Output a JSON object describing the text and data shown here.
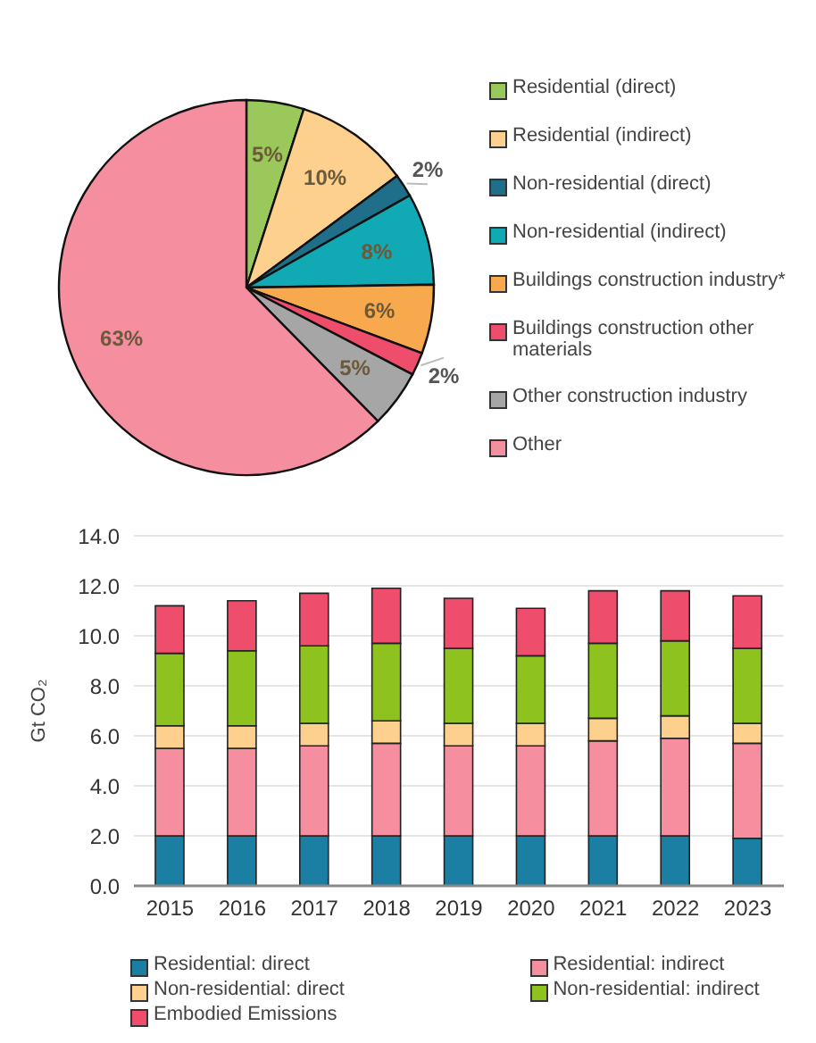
{
  "chart_data": [
    {
      "type": "pie",
      "categories": [
        "Residential (direct)",
        "Residential (indirect)",
        "Non-residential (direct)",
        "Non-residential (indirect)",
        "Buildings construction industry*",
        "Buildings construction other materials",
        "Other construction industry",
        "Other"
      ],
      "values": [
        5,
        10,
        2,
        8,
        6,
        2,
        5,
        63
      ],
      "value_labels": [
        "5%",
        "10%",
        "2%",
        "8%",
        "6%",
        "2%",
        "5%",
        "63%"
      ],
      "colors": [
        "#9bc85a",
        "#fdd08e",
        "#1f6f8b",
        "#11a9b4",
        "#f9a94d",
        "#ee4d6b",
        "#a6a6a6",
        "#f58fa0"
      ],
      "legend": "right"
    },
    {
      "type": "bar",
      "stacked": true,
      "ylabel": "Gt CO₂",
      "categories": [
        "2015",
        "2016",
        "2017",
        "2018",
        "2019",
        "2020",
        "2021",
        "2022",
        "2023"
      ],
      "series": [
        {
          "name": "Residential: direct",
          "color": "#1b7ea3",
          "values": [
            2.0,
            2.0,
            2.0,
            2.0,
            2.0,
            2.0,
            2.0,
            2.0,
            1.9
          ]
        },
        {
          "name": "Residential: indirect",
          "color": "#f58fa0",
          "values": [
            3.5,
            3.5,
            3.6,
            3.7,
            3.6,
            3.6,
            3.8,
            3.9,
            3.8
          ]
        },
        {
          "name": "Non-residential: direct",
          "color": "#fdd08e",
          "values": [
            0.9,
            0.9,
            0.9,
            0.9,
            0.9,
            0.9,
            0.9,
            0.9,
            0.8
          ]
        },
        {
          "name": "Non-residential: indirect",
          "color": "#8dc21f",
          "values": [
            2.9,
            3.0,
            3.1,
            3.1,
            3.0,
            2.7,
            3.0,
            3.0,
            3.0
          ]
        },
        {
          "name": "Embodied Emissions",
          "color": "#ee4d6b",
          "values": [
            1.9,
            2.0,
            2.1,
            2.2,
            2.0,
            1.9,
            2.1,
            2.0,
            2.1
          ]
        }
      ],
      "ylim": [
        0,
        14
      ],
      "yticks": [
        {
          "value": 0,
          "label": "0.0"
        },
        {
          "value": 2,
          "label": "2.0"
        },
        {
          "value": 4,
          "label": "4.0"
        },
        {
          "value": 6,
          "label": "6.0"
        },
        {
          "value": 8,
          "label": "8.0"
        },
        {
          "value": 10,
          "label": "10.0"
        },
        {
          "value": 12,
          "label": "12.0"
        },
        {
          "value": 14,
          "label": "14.0"
        }
      ],
      "grid": "y",
      "legend": "bottom"
    }
  ]
}
